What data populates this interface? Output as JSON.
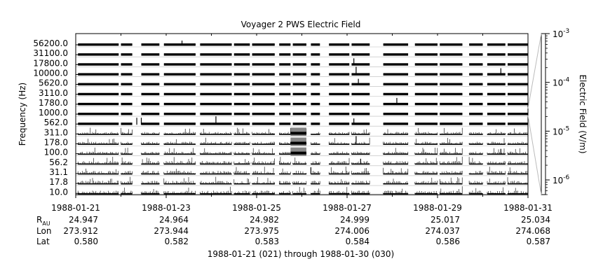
{
  "chart_data": {
    "type": "line",
    "title": "Voyager 2 PWS Electric Field",
    "ylabel": "Frequency (Hz)",
    "frequency_channels": [
      "56200.0",
      "31100.0",
      "17800.0",
      "10000.0",
      "5620.0",
      "3110.0",
      "1780.0",
      "1000.0",
      "562.0",
      "311.0",
      "178.0",
      "100.0",
      "56.2",
      "31.1",
      "17.8",
      "10.0"
    ],
    "colorbar": {
      "label": "Electric Field (V/m)",
      "scale": "log",
      "range": [
        5e-07,
        0.001
      ],
      "ticks": [
        {
          "base": "10",
          "exp": "-3",
          "value": 0.001
        },
        {
          "base": "10",
          "exp": "-4",
          "value": 0.0001
        },
        {
          "base": "10",
          "exp": "-5",
          "value": 1e-05
        },
        {
          "base": "10",
          "exp": "-6",
          "value": 1e-06
        }
      ]
    },
    "x_range": [
      "1988-01-21",
      "1988-01-31"
    ],
    "x_ticks": [
      "1988-01-21",
      "1988-01-23",
      "1988-01-25",
      "1988-01-27",
      "1988-01-29",
      "1988-01-31"
    ],
    "ephemeris": {
      "row_labels": [
        {
          "main": "R",
          "sub": "AU"
        },
        {
          "main": "Lon",
          "sub": ""
        },
        {
          "main": "Lat",
          "sub": ""
        }
      ],
      "R_AU": [
        "24.947",
        "24.964",
        "24.982",
        "24.999",
        "25.017",
        "25.034"
      ],
      "Lon": [
        "273.912",
        "273.944",
        "273.975",
        "274.006",
        "274.037",
        "274.068"
      ],
      "Lat": [
        "0.580",
        "0.582",
        "0.583",
        "0.584",
        "0.586",
        "0.587"
      ]
    },
    "data_segments_days": [
      [
        0.05,
        0.95
      ],
      [
        1.0,
        1.25
      ],
      [
        1.45,
        1.85
      ],
      [
        1.95,
        2.65
      ],
      [
        2.75,
        3.45
      ],
      [
        3.5,
        3.85
      ],
      [
        3.9,
        4.4
      ],
      [
        4.5,
        4.75
      ],
      [
        4.8,
        5.1
      ],
      [
        5.2,
        5.4
      ],
      [
        5.6,
        6.05
      ],
      [
        6.1,
        6.5
      ],
      [
        6.8,
        7.35
      ],
      [
        7.5,
        8.0
      ],
      [
        8.05,
        8.55
      ],
      [
        8.7,
        9.0
      ],
      [
        9.1,
        9.5
      ],
      [
        9.55,
        10.0
      ]
    ],
    "xlabel": "1988-01-21 (021) through 1988-01-30 (030)"
  }
}
